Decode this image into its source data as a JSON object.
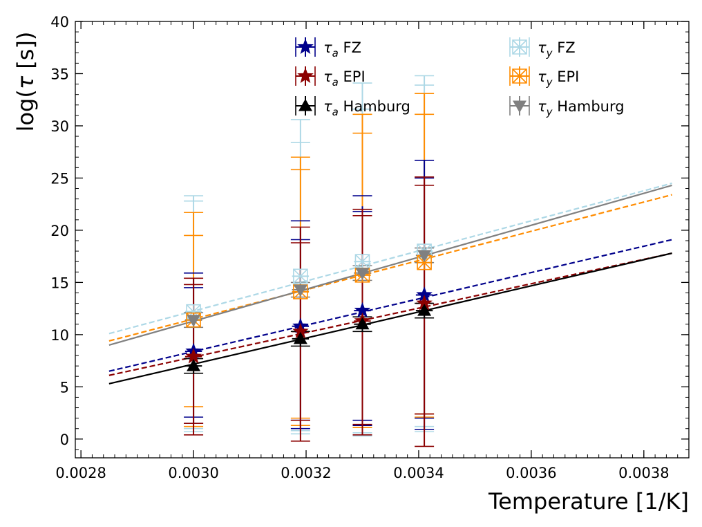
{
  "chart_data": {
    "type": "scatter",
    "title": "",
    "xlabel": "Temperature [1/K]",
    "ylabel_prefix": "log(",
    "ylabel_symbol": "τ",
    "ylabel_suffix": " [s])",
    "xlim": [
      0.00279,
      0.00388
    ],
    "ylim": [
      -1.8,
      40
    ],
    "x_ticks": [
      0.0028,
      0.003,
      0.0032,
      0.0034,
      0.0036,
      0.0038
    ],
    "x_tick_labels": [
      "0.0028",
      "0.0030",
      "0.0032",
      "0.0034",
      "0.0036",
      "0.0038"
    ],
    "y_ticks": [
      0,
      5,
      10,
      15,
      20,
      25,
      30,
      35,
      40
    ],
    "y_tick_labels": [
      "0",
      "5",
      "10",
      "15",
      "20",
      "25",
      "30",
      "35",
      "40"
    ],
    "grid": false,
    "legend_position": "top",
    "series": [
      {
        "name": "τa FZ",
        "greek": "τ",
        "sub": "a",
        "label": " FZ",
        "color": "#00008b",
        "marker": "star",
        "fit_style": "dashed",
        "fit_x": [
          0.00285,
          0.00385
        ],
        "fit_y": [
          6.5,
          19.1
        ],
        "points": [
          {
            "x": 0.003,
            "y": 8.4,
            "ylo": 1.5,
            "yhi": 15.4,
            "xerr": 1.5e-05,
            "caps": [
              1.5,
              2.1,
              14.5,
              15.9
            ]
          },
          {
            "x": 0.00319,
            "y": 10.8,
            "ylo": 1.0,
            "yhi": 20.3,
            "xerr": 1.5e-05,
            "caps": [
              1.0,
              1.8,
              19.1,
              20.9
            ]
          },
          {
            "x": 0.0033,
            "y": 12.3,
            "ylo": 1.3,
            "yhi": 22.3,
            "xerr": 1.5e-05,
            "caps": [
              1.3,
              1.8,
              21.8,
              23.3
            ]
          },
          {
            "x": 0.00341,
            "y": 13.8,
            "ylo": 0.9,
            "yhi": 26.7,
            "xerr": 1.5e-05,
            "caps": [
              0.9,
              2.0,
              25.0,
              26.7
            ]
          }
        ]
      },
      {
        "name": "τa EPI",
        "greek": "τ",
        "sub": "a",
        "label": " EPI",
        "color": "#8b0000",
        "marker": "star",
        "fit_style": "dashed",
        "fit_x": [
          0.00285,
          0.00385
        ],
        "fit_y": [
          6.1,
          17.8
        ],
        "points": [
          {
            "x": 0.003,
            "y": 7.9,
            "ylo": 0.4,
            "yhi": 15.4,
            "xerr": 1.5e-05,
            "caps": [
              0.4,
              1.5,
              14.8,
              15.4
            ]
          },
          {
            "x": 0.00319,
            "y": 10.3,
            "ylo": -0.2,
            "yhi": 20.3,
            "xerr": 1.5e-05,
            "caps": [
              -0.2,
              1.8,
              18.8,
              20.3
            ]
          },
          {
            "x": 0.0033,
            "y": 11.3,
            "ylo": 0.4,
            "yhi": 22.0,
            "xerr": 1.5e-05,
            "caps": [
              0.4,
              1.4,
              21.4,
              22.0
            ]
          },
          {
            "x": 0.00341,
            "y": 13.0,
            "ylo": -0.7,
            "yhi": 25.1,
            "xerr": 1.5e-05,
            "caps": [
              -0.7,
              2.4,
              24.3,
              25.1
            ]
          }
        ]
      },
      {
        "name": "τa Hamburg",
        "greek": "τ",
        "sub": "a",
        "label": " Hamburg",
        "color": "#000000",
        "marker": "triangle-up",
        "fit_style": "solid",
        "fit_x": [
          0.00285,
          0.00385
        ],
        "fit_y": [
          5.3,
          17.8
        ],
        "points": [
          {
            "x": 0.003,
            "y": 7.0,
            "ylo": 6.3,
            "yhi": 7.7,
            "xerr": 1.5e-05,
            "caps": [
              6.3,
              7.7
            ]
          },
          {
            "x": 0.00319,
            "y": 9.6,
            "ylo": 8.9,
            "yhi": 10.3,
            "xerr": 1.5e-05,
            "caps": [
              8.9,
              10.3
            ]
          },
          {
            "x": 0.0033,
            "y": 11.0,
            "ylo": 10.3,
            "yhi": 11.7,
            "xerr": 1.5e-05,
            "caps": [
              10.3,
              11.7
            ]
          },
          {
            "x": 0.00341,
            "y": 12.3,
            "ylo": 11.6,
            "yhi": 13.0,
            "xerr": 1.5e-05,
            "caps": [
              11.6,
              13.0
            ]
          }
        ]
      },
      {
        "name": "τy FZ",
        "greek": "τ",
        "sub": "y",
        "label": " FZ",
        "color": "#add8e6",
        "marker": "asterisk-square",
        "fit_style": "dashed",
        "fit_x": [
          0.00285,
          0.00385
        ],
        "fit_y": [
          10.1,
          24.5
        ],
        "points": [
          {
            "x": 0.003,
            "y": 12.2,
            "ylo": 0.7,
            "yhi": 23.3,
            "xerr": 1.5e-05,
            "caps": [
              0.7,
              1.0,
              22.8,
              23.3
            ]
          },
          {
            "x": 0.00319,
            "y": 15.6,
            "ylo": 0.5,
            "yhi": 30.6,
            "xerr": 1.5e-05,
            "caps": [
              0.5,
              0.8,
              28.4,
              30.6
            ]
          },
          {
            "x": 0.0033,
            "y": 17.0,
            "ylo": 0.3,
            "yhi": 34.1,
            "xerr": 1.5e-05,
            "caps": [
              0.3,
              0.6,
              31.6,
              34.1
            ]
          },
          {
            "x": 0.00341,
            "y": 18.0,
            "ylo": 0.7,
            "yhi": 34.8,
            "xerr": 1.5e-05,
            "caps": [
              0.7,
              1.2,
              33.9,
              34.8
            ]
          }
        ]
      },
      {
        "name": "τy EPI",
        "greek": "τ",
        "sub": "y",
        "label": " EPI",
        "color": "#ff8c00",
        "marker": "asterisk-square",
        "fit_style": "dashed",
        "fit_x": [
          0.00285,
          0.00385
        ],
        "fit_y": [
          9.4,
          23.4
        ],
        "points": [
          {
            "x": 0.003,
            "y": 11.4,
            "ylo": 1.2,
            "yhi": 21.7,
            "xerr": 1.5e-05,
            "caps": [
              1.2,
              3.1,
              19.5,
              21.7
            ]
          },
          {
            "x": 0.00319,
            "y": 14.1,
            "ylo": 1.3,
            "yhi": 27.0,
            "xerr": 1.5e-05,
            "caps": [
              1.3,
              2.0,
              25.8,
              27.0
            ]
          },
          {
            "x": 0.0033,
            "y": 15.7,
            "ylo": 1.1,
            "yhi": 31.1,
            "xerr": 1.5e-05,
            "caps": [
              1.1,
              29.3,
              31.1
            ]
          },
          {
            "x": 0.00341,
            "y": 16.9,
            "ylo": 2.1,
            "yhi": 33.1,
            "xerr": 1.5e-05,
            "caps": [
              2.1,
              2.4,
              31.1,
              33.1
            ]
          }
        ]
      },
      {
        "name": "τy Hamburg",
        "greek": "τ",
        "sub": "y",
        "label": " Hamburg",
        "color": "#808080",
        "marker": "triangle-down",
        "fit_style": "solid",
        "fit_x": [
          0.00285,
          0.00385
        ],
        "fit_y": [
          9.0,
          24.3
        ],
        "points": [
          {
            "x": 0.003,
            "y": 11.4,
            "ylo": 10.7,
            "yhi": 12.1,
            "xerr": 1.5e-05,
            "caps": [
              10.7,
              12.1
            ]
          },
          {
            "x": 0.00319,
            "y": 14.3,
            "ylo": 13.6,
            "yhi": 15.0,
            "xerr": 1.5e-05,
            "caps": [
              13.6,
              15.0
            ]
          },
          {
            "x": 0.0033,
            "y": 15.9,
            "ylo": 15.2,
            "yhi": 16.6,
            "xerr": 1.5e-05,
            "caps": [
              15.2,
              16.6
            ]
          },
          {
            "x": 0.00341,
            "y": 17.6,
            "ylo": 16.9,
            "yhi": 18.3,
            "xerr": 1.5e-05,
            "caps": [
              16.9,
              18.3
            ]
          }
        ]
      }
    ]
  }
}
